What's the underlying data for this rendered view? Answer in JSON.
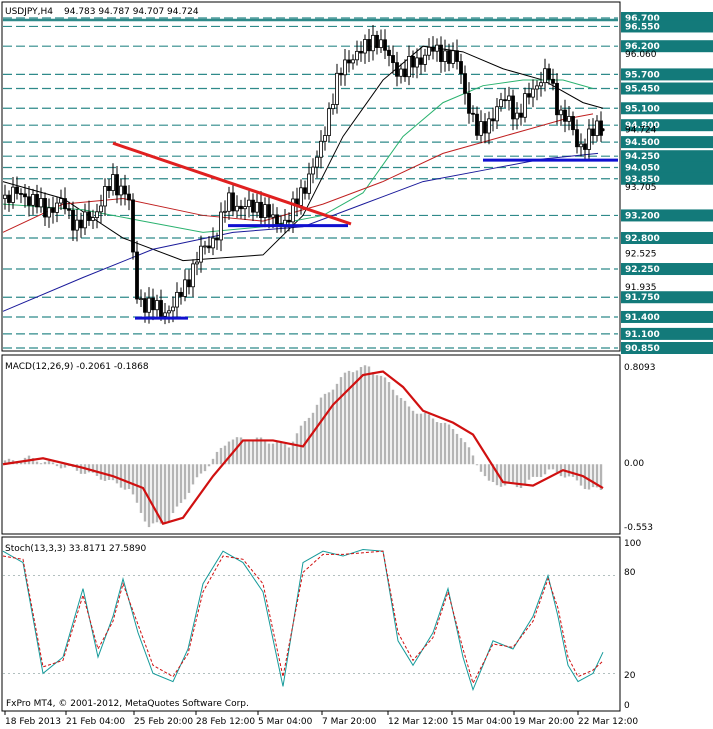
{
  "header": {
    "symbol": "USDJPY,H4",
    "ohlc": "94.783 94.787 94.707 94.724"
  },
  "macd": {
    "title": "MACD(12,26,9) -0.2061 -0.1868",
    "scale": [
      "0.8093",
      "0.00",
      "-0.553"
    ]
  },
  "stoch": {
    "title": "Stoch(13,3,3) 33.8171 27.5890",
    "scale": [
      "100",
      "80",
      "20",
      "0"
    ]
  },
  "footer": {
    "copyright": "FxPro MT4, © 2001-2012, MetaQuotes Software Corp."
  },
  "time_axis": [
    "18 Feb 2013",
    "21 Feb 04:00",
    "25 Feb 20:00",
    "28 Feb 12:00",
    "5 Mar 04:00",
    "7 Mar 20:00",
    "12 Mar 12:00",
    "15 Mar 04:00",
    "19 Mar 20:00",
    "22 Mar 12:00"
  ],
  "colors": {
    "level_line": "#2f8a8a",
    "level_label_bg": "#137a7a",
    "trendline": "#e02020",
    "support": "#1010d0",
    "macd_signal": "#d01010",
    "macd_hist": "#b4b4b4",
    "stoch_main": "#159a9a",
    "stoch_signal": "#d01010",
    "ma_fast": "#000000",
    "ma_mid": "#2ab26f",
    "ma_slow": "#c02020",
    "ma_200": "#1b1b9b"
  },
  "chart_data": {
    "type": "candlestick",
    "symbol": "USDJPY",
    "timeframe": "H4",
    "price_axis": {
      "ylim": [
        90.85,
        96.7
      ],
      "labels": [
        "96.700",
        "96.550",
        "96.200",
        "96.060",
        "95.700",
        "95.450",
        "95.100",
        "94.800",
        "94.724",
        "94.500",
        "94.250",
        "94.050",
        "93.850",
        "93.705",
        "93.200",
        "92.800",
        "92.525",
        "92.250",
        "91.935",
        "91.750",
        "91.400",
        "91.100",
        "90.850"
      ],
      "highlighted_levels": [
        "96.700",
        "96.550",
        "96.200",
        "95.700",
        "95.450",
        "95.100",
        "94.800",
        "94.500",
        "94.250",
        "94.050",
        "93.850",
        "93.200",
        "92.800",
        "92.250",
        "91.750",
        "91.400",
        "91.100",
        "90.850"
      ]
    },
    "approx_close_path": [
      [
        0,
        93.5
      ],
      [
        20,
        93.6
      ],
      [
        40,
        93.3
      ],
      [
        60,
        93.4
      ],
      [
        75,
        93.0
      ],
      [
        90,
        93.2
      ],
      [
        110,
        93.8
      ],
      [
        125,
        93.6
      ],
      [
        133,
        91.8
      ],
      [
        145,
        91.6
      ],
      [
        160,
        91.5
      ],
      [
        172,
        91.6
      ],
      [
        185,
        92.1
      ],
      [
        200,
        92.6
      ],
      [
        215,
        92.9
      ],
      [
        225,
        93.5
      ],
      [
        240,
        93.3
      ],
      [
        255,
        93.4
      ],
      [
        270,
        93.1
      ],
      [
        285,
        93.1
      ],
      [
        300,
        93.7
      ],
      [
        315,
        94.2
      ],
      [
        325,
        95.0
      ],
      [
        335,
        95.6
      ],
      [
        345,
        96.0
      ],
      [
        360,
        96.1
      ],
      [
        372,
        96.4
      ],
      [
        385,
        96.0
      ],
      [
        400,
        95.7
      ],
      [
        410,
        95.9
      ],
      [
        425,
        96.1
      ],
      [
        440,
        96.1
      ],
      [
        455,
        95.9
      ],
      [
        465,
        95.2
      ],
      [
        475,
        94.6
      ],
      [
        490,
        95.0
      ],
      [
        505,
        95.3
      ],
      [
        515,
        94.9
      ],
      [
        525,
        95.3
      ],
      [
        535,
        95.6
      ],
      [
        545,
        95.7
      ],
      [
        555,
        95.1
      ],
      [
        565,
        94.9
      ],
      [
        575,
        94.4
      ],
      [
        585,
        94.6
      ],
      [
        593,
        94.7
      ],
      [
        600,
        94.72
      ]
    ],
    "moving_averages": [
      {
        "name": "fast",
        "points": [
          [
            0,
            93.8
          ],
          [
            60,
            93.5
          ],
          [
            120,
            92.8
          ],
          [
            180,
            92.4
          ],
          [
            260,
            92.5
          ],
          [
            300,
            93.2
          ],
          [
            340,
            94.6
          ],
          [
            380,
            95.6
          ],
          [
            420,
            96.2
          ],
          [
            460,
            96.1
          ],
          [
            500,
            95.8
          ],
          [
            540,
            95.6
          ],
          [
            580,
            95.2
          ],
          [
            600,
            95.1
          ]
        ]
      },
      {
        "name": "mid",
        "points": [
          [
            0,
            93.4
          ],
          [
            80,
            93.3
          ],
          [
            140,
            93.1
          ],
          [
            200,
            92.9
          ],
          [
            260,
            93.0
          ],
          [
            320,
            93.2
          ],
          [
            360,
            93.6
          ],
          [
            400,
            94.6
          ],
          [
            440,
            95.2
          ],
          [
            480,
            95.5
          ],
          [
            520,
            95.6
          ],
          [
            560,
            95.6
          ],
          [
            590,
            95.45
          ]
        ]
      },
      {
        "name": "slow",
        "points": [
          [
            0,
            92.9
          ],
          [
            60,
            93.4
          ],
          [
            120,
            93.5
          ],
          [
            200,
            93.2
          ],
          [
            260,
            93.1
          ],
          [
            320,
            93.4
          ],
          [
            380,
            93.8
          ],
          [
            440,
            94.3
          ],
          [
            500,
            94.6
          ],
          [
            560,
            94.9
          ],
          [
            590,
            95.0
          ]
        ]
      },
      {
        "name": "ma200",
        "points": [
          [
            0,
            91.5
          ],
          [
            80,
            92.1
          ],
          [
            150,
            92.6
          ],
          [
            230,
            92.9
          ],
          [
            300,
            93.0
          ],
          [
            360,
            93.4
          ],
          [
            420,
            93.8
          ],
          [
            480,
            94.0
          ],
          [
            540,
            94.2
          ],
          [
            595,
            94.3
          ]
        ]
      }
    ],
    "trendline": {
      "from": [
        110,
        94.48
      ],
      "to": [
        348,
        93.05
      ]
    },
    "support_lines": [
      {
        "from": [
          132,
          91.38
        ],
        "to": [
          185,
          91.38
        ]
      },
      {
        "from": [
          225,
          93.02
        ],
        "to": [
          345,
          93.02
        ]
      },
      {
        "from": [
          480,
          94.18
        ],
        "to": [
          615,
          94.18
        ]
      }
    ],
    "macd": {
      "ylim": [
        -0.553,
        0.8093
      ],
      "signal": [
        [
          0,
          0.0
        ],
        [
          40,
          0.05
        ],
        [
          80,
          -0.03
        ],
        [
          110,
          -0.1
        ],
        [
          140,
          -0.2
        ],
        [
          160,
          -0.5
        ],
        [
          180,
          -0.45
        ],
        [
          210,
          -0.1
        ],
        [
          240,
          0.2
        ],
        [
          270,
          0.2
        ],
        [
          300,
          0.15
        ],
        [
          330,
          0.5
        ],
        [
          360,
          0.75
        ],
        [
          380,
          0.78
        ],
        [
          400,
          0.65
        ],
        [
          420,
          0.45
        ],
        [
          450,
          0.35
        ],
        [
          470,
          0.25
        ],
        [
          500,
          -0.15
        ],
        [
          530,
          -0.18
        ],
        [
          560,
          -0.05
        ],
        [
          580,
          -0.1
        ],
        [
          600,
          -0.2
        ]
      ]
    },
    "stoch": {
      "ylim": [
        0,
        100
      ],
      "main": [
        [
          0,
          95
        ],
        [
          20,
          88
        ],
        [
          40,
          20
        ],
        [
          60,
          30
        ],
        [
          80,
          72
        ],
        [
          95,
          30
        ],
        [
          110,
          55
        ],
        [
          120,
          78
        ],
        [
          135,
          45
        ],
        [
          150,
          20
        ],
        [
          170,
          15
        ],
        [
          185,
          35
        ],
        [
          200,
          75
        ],
        [
          220,
          95
        ],
        [
          240,
          88
        ],
        [
          260,
          70
        ],
        [
          280,
          12
        ],
        [
          300,
          88
        ],
        [
          320,
          95
        ],
        [
          340,
          92
        ],
        [
          360,
          96
        ],
        [
          380,
          95
        ],
        [
          395,
          40
        ],
        [
          410,
          25
        ],
        [
          430,
          45
        ],
        [
          445,
          72
        ],
        [
          460,
          30
        ],
        [
          470,
          10
        ],
        [
          490,
          40
        ],
        [
          510,
          35
        ],
        [
          530,
          55
        ],
        [
          545,
          80
        ],
        [
          555,
          55
        ],
        [
          565,
          25
        ],
        [
          575,
          15
        ],
        [
          590,
          20
        ],
        [
          600,
          33
        ]
      ],
      "signal": [
        [
          0,
          92
        ],
        [
          20,
          90
        ],
        [
          40,
          24
        ],
        [
          60,
          28
        ],
        [
          80,
          68
        ],
        [
          95,
          35
        ],
        [
          110,
          52
        ],
        [
          120,
          75
        ],
        [
          135,
          50
        ],
        [
          150,
          25
        ],
        [
          170,
          18
        ],
        [
          185,
          32
        ],
        [
          200,
          70
        ],
        [
          220,
          92
        ],
        [
          240,
          90
        ],
        [
          260,
          75
        ],
        [
          280,
          18
        ],
        [
          300,
          82
        ],
        [
          320,
          93
        ],
        [
          340,
          93
        ],
        [
          360,
          94
        ],
        [
          380,
          95
        ],
        [
          395,
          45
        ],
        [
          410,
          28
        ],
        [
          430,
          42
        ],
        [
          445,
          70
        ],
        [
          460,
          35
        ],
        [
          470,
          14
        ],
        [
          490,
          38
        ],
        [
          510,
          36
        ],
        [
          530,
          52
        ],
        [
          545,
          78
        ],
        [
          555,
          60
        ],
        [
          565,
          30
        ],
        [
          575,
          18
        ],
        [
          590,
          22
        ],
        [
          600,
          27.6
        ]
      ]
    }
  }
}
